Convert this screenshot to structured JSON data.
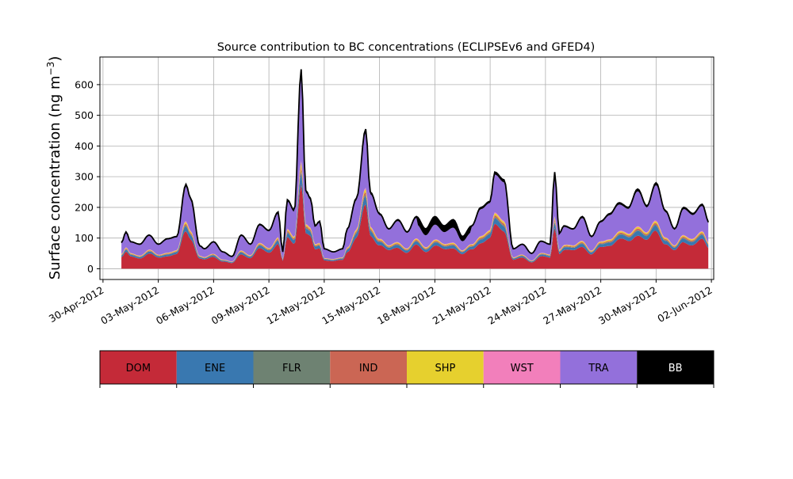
{
  "chart_data": {
    "type": "area",
    "stacked": true,
    "title": "Source contribution to BC concentrations (ECLIPSEv6 and GFED4)",
    "ylabel": "Surface concentration (ng m",
    "ylabel_sup": "−3",
    "ylabel_close": ")",
    "xlabel": "",
    "grid": true,
    "xlim": [
      "2012-04-29T20:00",
      "2012-06-02T03:00"
    ],
    "ylim": [
      -35,
      690
    ],
    "yticks": [
      0,
      100,
      200,
      300,
      400,
      500,
      600
    ],
    "xticks": [
      "2012-04-30",
      "2012-05-03",
      "2012-05-06",
      "2012-05-09",
      "2012-05-12",
      "2012-05-15",
      "2012-05-18",
      "2012-05-21",
      "2012-05-24",
      "2012-05-27",
      "2012-05-30",
      "2012-06-02"
    ],
    "xtick_labels": [
      "30-Apr-2012",
      "03-May-2012",
      "06-May-2012",
      "09-May-2012",
      "12-May-2012",
      "15-May-2012",
      "18-May-2012",
      "21-May-2012",
      "24-May-2012",
      "27-May-2012",
      "30-May-2012",
      "02-Jun-2012"
    ],
    "legend_placement": "below plot, horizontal color bar",
    "series": [
      {
        "name": "DOM",
        "color": "#c42a38"
      },
      {
        "name": "ENE",
        "color": "#3978b0"
      },
      {
        "name": "FLR",
        "color": "#6e8272"
      },
      {
        "name": "IND",
        "color": "#cb6654"
      },
      {
        "name": "SHP",
        "color": "#e6d02e"
      },
      {
        "name": "WST",
        "color": "#f27fbb"
      },
      {
        "name": "TRA",
        "color": "#9370db"
      },
      {
        "name": "BB",
        "color": "#000000"
      }
    ],
    "total_keypoints": [
      [
        "2012-05-01T00:00",
        85
      ],
      [
        "2012-05-01T06:00",
        120
      ],
      [
        "2012-05-01T12:00",
        88
      ],
      [
        "2012-05-02T00:00",
        80
      ],
      [
        "2012-05-02T12:00",
        110
      ],
      [
        "2012-05-03T00:00",
        80
      ],
      [
        "2012-05-03T12:00",
        98
      ],
      [
        "2012-05-04T00:00",
        105
      ],
      [
        "2012-05-04T12:00",
        275
      ],
      [
        "2012-05-04T18:00",
        230
      ],
      [
        "2012-05-05T06:00",
        75
      ],
      [
        "2012-05-05T12:00",
        65
      ],
      [
        "2012-05-06T00:00",
        88
      ],
      [
        "2012-05-06T12:00",
        55
      ],
      [
        "2012-05-07T00:00",
        40
      ],
      [
        "2012-05-07T12:00",
        110
      ],
      [
        "2012-05-08T00:00",
        80
      ],
      [
        "2012-05-08T12:00",
        145
      ],
      [
        "2012-05-09T00:00",
        125
      ],
      [
        "2012-05-09T12:00",
        185
      ],
      [
        "2012-05-09T18:00",
        55
      ],
      [
        "2012-05-10T00:00",
        225
      ],
      [
        "2012-05-10T09:00",
        190
      ],
      [
        "2012-05-10T18:00",
        650
      ],
      [
        "2012-05-11T00:00",
        255
      ],
      [
        "2012-05-11T06:00",
        230
      ],
      [
        "2012-05-11T12:00",
        140
      ],
      [
        "2012-05-11T18:00",
        155
      ],
      [
        "2012-05-12T00:00",
        65
      ],
      [
        "2012-05-12T12:00",
        55
      ],
      [
        "2012-05-13T00:00",
        65
      ],
      [
        "2012-05-13T06:00",
        130
      ],
      [
        "2012-05-13T18:00",
        230
      ],
      [
        "2012-05-14T06:00",
        455
      ],
      [
        "2012-05-14T12:00",
        250
      ],
      [
        "2012-05-15T00:00",
        180
      ],
      [
        "2012-05-15T12:00",
        130
      ],
      [
        "2012-05-16T00:00",
        160
      ],
      [
        "2012-05-16T12:00",
        120
      ],
      [
        "2012-05-17T00:00",
        170
      ],
      [
        "2012-05-17T12:00",
        130
      ],
      [
        "2012-05-18T00:00",
        170
      ],
      [
        "2012-05-18T12:00",
        140
      ],
      [
        "2012-05-19T00:00",
        160
      ],
      [
        "2012-05-19T12:00",
        105
      ],
      [
        "2012-05-20T00:00",
        140
      ],
      [
        "2012-05-20T12:00",
        200
      ],
      [
        "2012-05-21T00:00",
        220
      ],
      [
        "2012-05-21T06:00",
        315
      ],
      [
        "2012-05-21T18:00",
        290
      ],
      [
        "2012-05-22T06:00",
        65
      ],
      [
        "2012-05-22T18:00",
        80
      ],
      [
        "2012-05-23T06:00",
        50
      ],
      [
        "2012-05-23T18:00",
        90
      ],
      [
        "2012-05-24T06:00",
        80
      ],
      [
        "2012-05-24T12:00",
        315
      ],
      [
        "2012-05-24T18:00",
        115
      ],
      [
        "2012-05-25T00:00",
        140
      ],
      [
        "2012-05-25T12:00",
        130
      ],
      [
        "2012-05-26T00:00",
        170
      ],
      [
        "2012-05-26T12:00",
        105
      ],
      [
        "2012-05-27T00:00",
        155
      ],
      [
        "2012-05-27T12:00",
        180
      ],
      [
        "2012-05-28T00:00",
        215
      ],
      [
        "2012-05-28T12:00",
        200
      ],
      [
        "2012-05-29T00:00",
        260
      ],
      [
        "2012-05-29T12:00",
        205
      ],
      [
        "2012-05-30T00:00",
        280
      ],
      [
        "2012-05-30T12:00",
        190
      ],
      [
        "2012-05-31T00:00",
        130
      ],
      [
        "2012-05-31T12:00",
        200
      ],
      [
        "2012-06-01T00:00",
        180
      ],
      [
        "2012-06-01T12:00",
        210
      ],
      [
        "2012-06-01T21:00",
        150
      ]
    ]
  }
}
